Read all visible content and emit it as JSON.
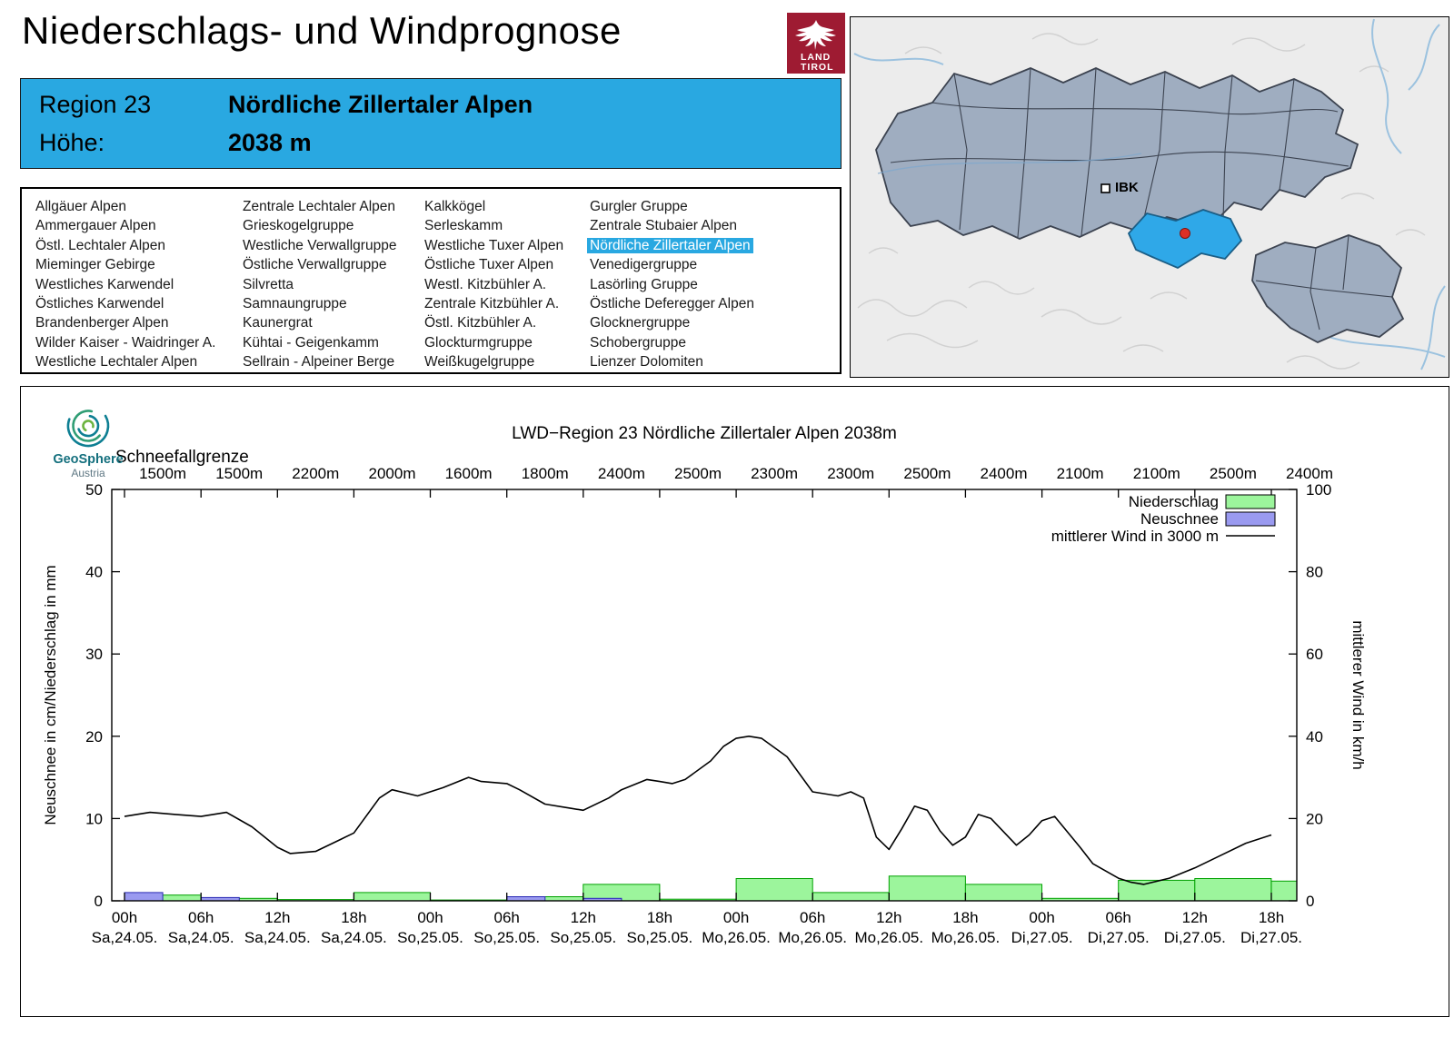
{
  "header": {
    "title": "Niederschlags- und Windprognose",
    "logo": {
      "line1": "LAND",
      "line2": "TIROL"
    }
  },
  "region_info": {
    "region_label": "Region 23",
    "region_name": "Nördliche Zillertaler Alpen",
    "elevation_label": "Höhe:",
    "elevation_value": "2038 m"
  },
  "region_list": {
    "selected": "Nördliche Zillertaler Alpen",
    "columns": [
      [
        "Allgäuer Alpen",
        "Ammergauer Alpen",
        "Östl. Lechtaler Alpen",
        "Mieminger Gebirge",
        "Westliches Karwendel",
        "Östliches Karwendel",
        "Brandenberger Alpen",
        "Wilder Kaiser - Waidringer A.",
        "Westliche Lechtaler Alpen"
      ],
      [
        "Zentrale Lechtaler Alpen",
        "Grieskogelgruppe",
        "Westliche Verwallgruppe",
        "Östliche Verwallgruppe",
        "Silvretta",
        "Samnaungruppe",
        "Kaunergrat",
        "Kühtai - Geigenkamm",
        "Sellrain - Alpeiner Berge"
      ],
      [
        "Kalkkögel",
        "Serleskamm",
        "Westliche Tuxer Alpen",
        "Östliche Tuxer Alpen",
        "Westl. Kitzbühler A.",
        "Zentrale Kitzbühler A.",
        "Östl. Kitzbühler A.",
        "Glockturmgruppe",
        "Weißkugelgruppe"
      ],
      [
        "Gurgler Gruppe",
        "Zentrale Stubaier Alpen",
        "Nördliche Zillertaler Alpen",
        "Venedigergruppe",
        "Lasörling Gruppe",
        "Östliche Deferegger Alpen",
        "Glocknergruppe",
        "Schobergruppe",
        "Lienzer Dolomiten"
      ]
    ]
  },
  "map": {
    "city_label": "IBK"
  },
  "attribution": {
    "brand": "GeoSphere",
    "country": "Austria"
  },
  "colors": {
    "accent_blue": "#29a8e1",
    "precip_fill": "#9cf59c",
    "precip_stroke": "#00a000",
    "snow_fill": "#9a9af0",
    "snow_stroke": "#2828b4",
    "wind_line": "#000000",
    "map_region_fill": "#9fadc0",
    "map_selected_fill": "#2fa8e8",
    "logo_red": "#9e1b32"
  },
  "chart_data": {
    "type": "combo-bar-line",
    "title": "LWD−Region 23 Nördliche Zillertaler Alpen 2038m",
    "snowline_label": "Schneefallgrenze",
    "snowline_values": [
      "1500m",
      "1500m",
      "2200m",
      "2000m",
      "1600m",
      "1800m",
      "2400m",
      "2500m",
      "2300m",
      "2300m",
      "2500m",
      "2400m",
      "2100m",
      "2100m",
      "2500m",
      "2400m"
    ],
    "ylabel_left": "Neuschnee in cm/Niederschlag in mm",
    "ylabel_right": "mittlerer Wind in km/h",
    "ylim_left": [
      0,
      50
    ],
    "ylim_right": [
      0,
      100
    ],
    "yticks_left": [
      0,
      10,
      20,
      30,
      40,
      50
    ],
    "yticks_right": [
      0,
      20,
      40,
      60,
      80,
      100
    ],
    "x_ticks": [
      {
        "time": "00h",
        "date": "Sa,24.05."
      },
      {
        "time": "06h",
        "date": "Sa,24.05."
      },
      {
        "time": "12h",
        "date": "Sa,24.05."
      },
      {
        "time": "18h",
        "date": "Sa,24.05."
      },
      {
        "time": "00h",
        "date": "So,25.05."
      },
      {
        "time": "06h",
        "date": "So,25.05."
      },
      {
        "time": "12h",
        "date": "So,25.05."
      },
      {
        "time": "18h",
        "date": "So,25.05."
      },
      {
        "time": "00h",
        "date": "Mo,26.05."
      },
      {
        "time": "06h",
        "date": "Mo,26.05."
      },
      {
        "time": "12h",
        "date": "Mo,26.05."
      },
      {
        "time": "18h",
        "date": "Mo,26.05."
      },
      {
        "time": "00h",
        "date": "Di,27.05."
      },
      {
        "time": "06h",
        "date": "Di,27.05."
      },
      {
        "time": "12h",
        "date": "Di,27.05."
      },
      {
        "time": "18h",
        "date": "Di,27.05."
      }
    ],
    "legend": [
      {
        "label": "Niederschlag",
        "type": "box",
        "series": "niederschlag"
      },
      {
        "label": "Neuschnee",
        "type": "box",
        "series": "neuschnee"
      },
      {
        "label": "mittlerer Wind in 3000 m",
        "type": "line",
        "series": "wind"
      }
    ],
    "series": {
      "niederschlag_mm": {
        "period_hours": 6,
        "values": [
          0.7,
          0.3,
          0.15,
          1.0,
          0.1,
          0.5,
          2.0,
          0.2,
          2.7,
          1.0,
          3.0,
          2.0,
          0.3,
          2.5,
          2.7,
          2.4
        ]
      },
      "neuschnee_cm": {
        "period_hours": 6,
        "values": [
          1.0,
          0.4,
          0,
          0,
          0,
          0.5,
          0.3,
          0,
          0,
          0,
          0,
          0,
          0,
          0,
          0,
          0
        ]
      },
      "wind_kmh": {
        "points": [
          [
            0,
            20.5
          ],
          [
            2,
            21.5
          ],
          [
            4,
            21
          ],
          [
            6,
            20.5
          ],
          [
            8,
            21.5
          ],
          [
            10,
            18
          ],
          [
            12,
            13
          ],
          [
            13,
            11.5
          ],
          [
            15,
            12
          ],
          [
            17,
            15
          ],
          [
            18,
            16.5
          ],
          [
            20,
            25
          ],
          [
            21,
            27
          ],
          [
            23,
            25.5
          ],
          [
            25,
            27.5
          ],
          [
            27,
            30
          ],
          [
            28,
            29
          ],
          [
            30,
            28.5
          ],
          [
            31,
            27
          ],
          [
            33,
            23.5
          ],
          [
            35,
            22.5
          ],
          [
            36,
            22
          ],
          [
            38,
            25
          ],
          [
            39,
            27
          ],
          [
            41,
            29.5
          ],
          [
            42,
            29
          ],
          [
            43,
            28.5
          ],
          [
            44,
            29.5
          ],
          [
            46,
            34
          ],
          [
            47,
            37.5
          ],
          [
            48,
            39.5
          ],
          [
            49,
            40
          ],
          [
            50,
            39.5
          ],
          [
            52,
            35
          ],
          [
            54,
            26.5
          ],
          [
            56,
            25.5
          ],
          [
            57,
            26.5
          ],
          [
            58,
            25
          ],
          [
            59,
            15.5
          ],
          [
            60,
            12.5
          ],
          [
            61,
            17.5
          ],
          [
            62,
            23
          ],
          [
            63,
            22
          ],
          [
            64,
            17
          ],
          [
            65,
            13.5
          ],
          [
            66,
            15.5
          ],
          [
            67,
            21
          ],
          [
            68,
            20
          ],
          [
            70,
            13.5
          ],
          [
            71,
            16
          ],
          [
            72,
            19.5
          ],
          [
            73,
            20.5
          ],
          [
            75,
            13
          ],
          [
            76,
            9
          ],
          [
            78,
            5.5
          ],
          [
            79,
            4.5
          ],
          [
            80,
            4
          ],
          [
            82,
            5.5
          ],
          [
            84,
            8
          ],
          [
            86,
            11
          ],
          [
            88,
            14
          ],
          [
            90,
            16
          ]
        ]
      }
    }
  }
}
